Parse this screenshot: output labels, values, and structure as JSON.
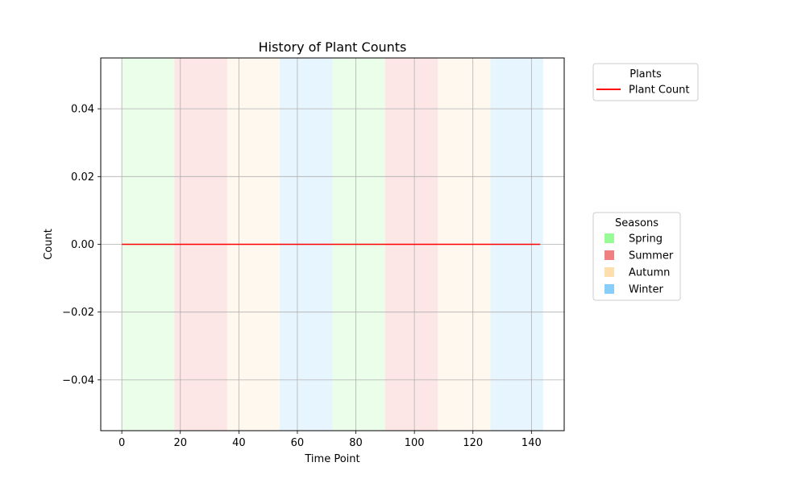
{
  "chart_data": {
    "type": "line",
    "title": "History of Plant Counts",
    "xlabel": "Time Point",
    "ylabel": "Count",
    "xlim": [
      -7.2,
      151.2
    ],
    "ylim": [
      -0.055,
      0.055
    ],
    "xticks": [
      0,
      20,
      40,
      60,
      80,
      100,
      120,
      140
    ],
    "yticks": [
      -0.04,
      -0.02,
      0.0,
      0.02,
      0.04
    ],
    "xtick_labels": [
      "0",
      "20",
      "40",
      "60",
      "80",
      "100",
      "120",
      "140"
    ],
    "ytick_labels": [
      "−0.04",
      "−0.02",
      "0.00",
      "0.02",
      "0.04"
    ],
    "grid": true,
    "series": [
      {
        "name": "Plant Count",
        "color": "#ff0000",
        "x": [
          0,
          143
        ],
        "y": [
          0,
          0
        ]
      }
    ],
    "season_bands": [
      {
        "season": "Spring",
        "start": 0,
        "end": 18
      },
      {
        "season": "Summer",
        "start": 18,
        "end": 36
      },
      {
        "season": "Autumn",
        "start": 36,
        "end": 54
      },
      {
        "season": "Winter",
        "start": 54,
        "end": 72
      },
      {
        "season": "Spring",
        "start": 72,
        "end": 90
      },
      {
        "season": "Summer",
        "start": 90,
        "end": 108
      },
      {
        "season": "Autumn",
        "start": 108,
        "end": 126
      },
      {
        "season": "Winter",
        "start": 126,
        "end": 144
      }
    ],
    "season_colors": {
      "Spring": "#98fb98",
      "Summer": "#f08080",
      "Autumn": "#ffdead",
      "Winter": "#87cefa"
    },
    "band_opacity": 0.2,
    "legends": [
      {
        "title": "Plants",
        "placement": "upper-right-outside",
        "entries": [
          {
            "label": "Plant Count",
            "marker": "line",
            "color": "#ff0000"
          }
        ]
      },
      {
        "title": "Seasons",
        "placement": "center-right-outside",
        "entries": [
          {
            "label": "Spring",
            "marker": "square",
            "color": "#98fb98"
          },
          {
            "label": "Summer",
            "marker": "square",
            "color": "#f08080"
          },
          {
            "label": "Autumn",
            "marker": "square",
            "color": "#ffdead"
          },
          {
            "label": "Winter",
            "marker": "square",
            "color": "#87cefa"
          }
        ]
      }
    ]
  }
}
